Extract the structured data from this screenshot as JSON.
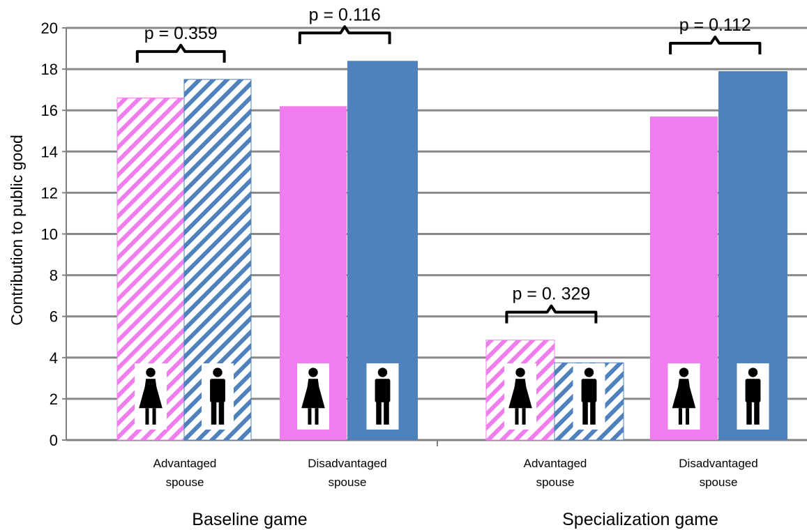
{
  "chart_data": {
    "type": "bar",
    "ylabel": "Contribution to public good",
    "xlabel": "",
    "ylim": [
      0,
      20
    ],
    "yticks": [
      0,
      2,
      4,
      6,
      8,
      10,
      12,
      14,
      16,
      18,
      20
    ],
    "grid": true,
    "legend": "none",
    "groups": [
      {
        "label": "Baseline game",
        "categories": [
          {
            "label": [
              "Advantaged",
              "spouse"
            ],
            "bars": [
              {
                "gender": "female",
                "value": 16.6,
                "pattern": "hatched"
              },
              {
                "gender": "male",
                "value": 17.5,
                "pattern": "hatched"
              }
            ],
            "p_value": "p = 0.359"
          },
          {
            "label": [
              "Disadvantaged",
              "spouse"
            ],
            "bars": [
              {
                "gender": "female",
                "value": 16.2,
                "pattern": "solid"
              },
              {
                "gender": "male",
                "value": 18.4,
                "pattern": "solid"
              }
            ],
            "p_value": "p = 0.116"
          }
        ]
      },
      {
        "label": "Specialization game",
        "categories": [
          {
            "label": [
              "Advantaged",
              "spouse"
            ],
            "bars": [
              {
                "gender": "female",
                "value": 4.85,
                "pattern": "hatched"
              },
              {
                "gender": "male",
                "value": 3.75,
                "pattern": "hatched"
              }
            ],
            "p_value": "p = 0. 329"
          },
          {
            "label": [
              "Disadvantaged",
              "spouse"
            ],
            "bars": [
              {
                "gender": "female",
                "value": 15.7,
                "pattern": "solid"
              },
              {
                "gender": "male",
                "value": 17.9,
                "pattern": "solid"
              }
            ],
            "p_value": "p = 0.112"
          }
        ]
      }
    ],
    "colors": {
      "female": "#f07ded",
      "male": "#4f81bd",
      "grid": "#888888",
      "axis": "#808080"
    },
    "icons": {
      "female": "woman-icon",
      "male": "man-icon"
    }
  }
}
